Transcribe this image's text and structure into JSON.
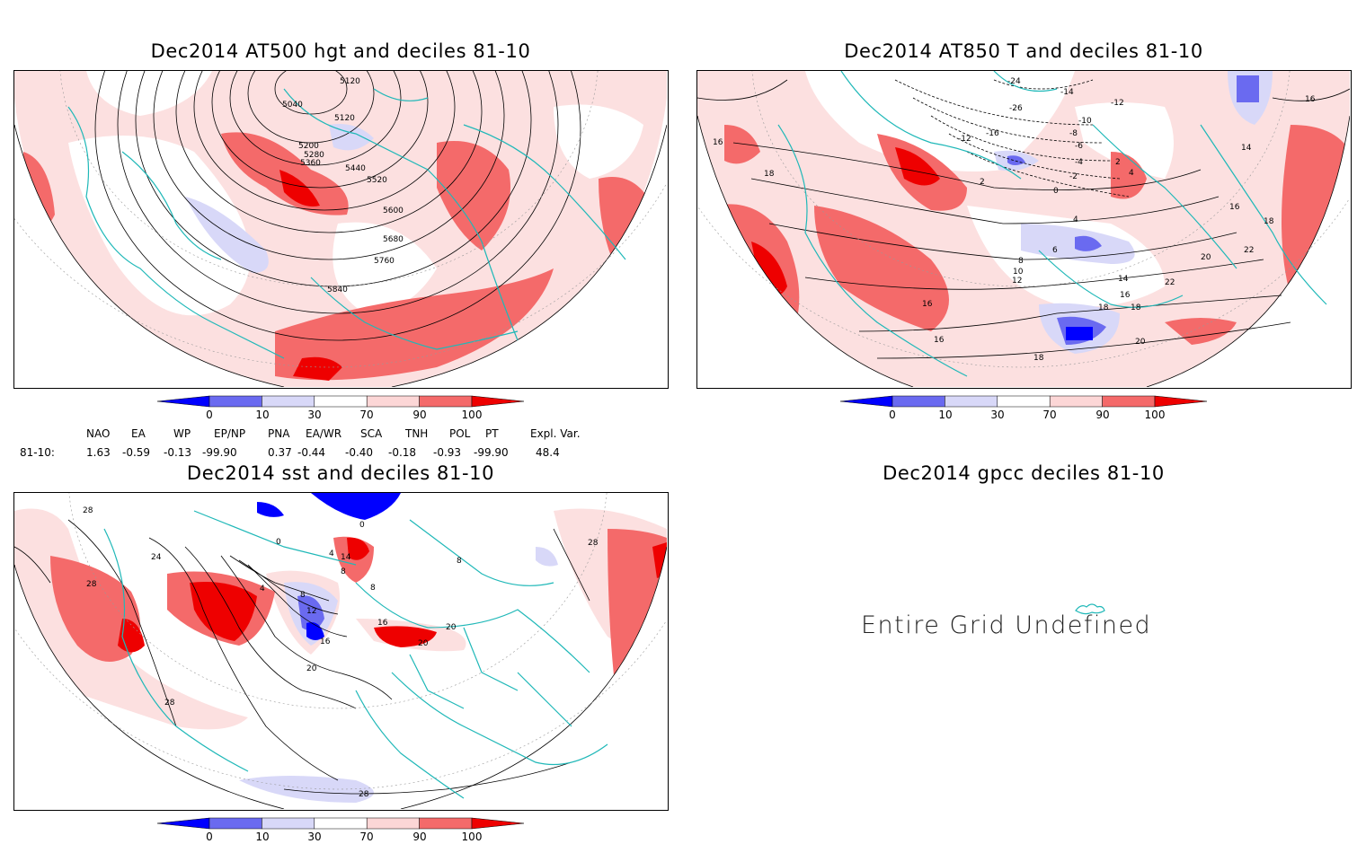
{
  "panels": {
    "p1": {
      "title": "Dec2014 AT500 hgt and deciles 81-10",
      "contour_labels": [
        "5120",
        "5040",
        "5120",
        "5200",
        "5280",
        "5360",
        "5440",
        "5520",
        "5600",
        "5680",
        "5760",
        "5840"
      ]
    },
    "p2": {
      "title": "Dec2014 AT850 T and deciles 81-10",
      "contour_labels": [
        "-24",
        "-26",
        "-14",
        "-12",
        "-10",
        "-16",
        "-12",
        "-8",
        "-6",
        "-4",
        "-2",
        "0",
        "2",
        "4",
        "2",
        "4",
        "6",
        "8",
        "10",
        "12",
        "14",
        "16",
        "18",
        "20",
        "22",
        "22",
        "20",
        "18",
        "16",
        "16",
        "18",
        "16",
        "14",
        "16",
        "18",
        "18",
        "16"
      ]
    },
    "p3": {
      "title": "Dec2014 sst and deciles 81-10",
      "contour_labels": [
        "28",
        "24",
        "28",
        "0",
        "0",
        "4",
        "14",
        "8",
        "4",
        "8",
        "12",
        "16",
        "20",
        "16",
        "20",
        "20",
        "28",
        "28",
        "28",
        "8",
        "8"
      ]
    },
    "p4": {
      "title": "Dec2014 gpcc deciles 81-10",
      "message": "Entire Grid Undefined"
    }
  },
  "colorbar": {
    "ticks": [
      "0",
      "10",
      "30",
      "70",
      "90",
      "100"
    ],
    "colors": [
      "#0000ff",
      "#6a6af0",
      "#d8d8f8",
      "#ffffff",
      "#fcd6d6",
      "#f46a6a",
      "#ee0000"
    ]
  },
  "indices": {
    "row_label": "81-10:",
    "names": [
      "NAO",
      "EA",
      "WP",
      "EP/NP",
      "PNA",
      "EA/WR",
      "SCA",
      "TNH",
      "POL",
      "PT",
      "Expl. Var."
    ],
    "values": [
      "1.63",
      "-0.59",
      "-0.13",
      "-99.90",
      "0.37",
      "-0.44",
      "-0.40",
      "-0.18",
      "-0.93",
      "-99.90",
      "48.4"
    ]
  }
}
